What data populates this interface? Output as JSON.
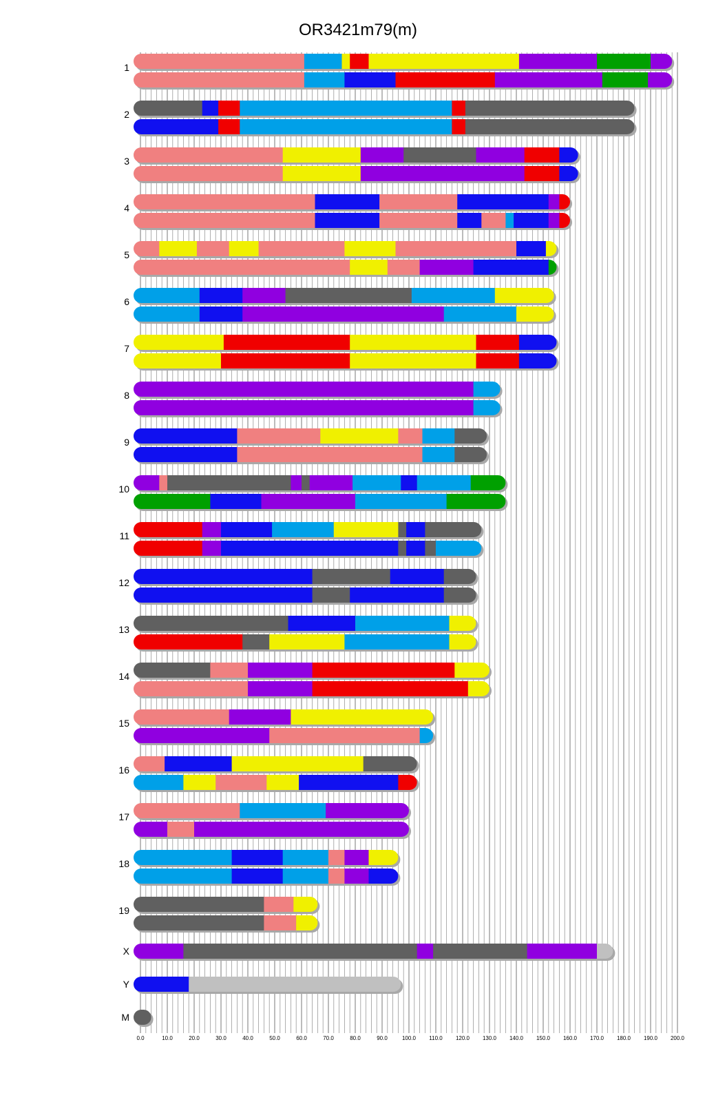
{
  "chart_data": {
    "type": "chromosome_painting",
    "title": "OR3421m79(m)",
    "xlabel": "",
    "ylabel": "",
    "xlim": [
      0,
      200
    ],
    "x_ticks": [
      "0.0",
      "10.0",
      "20.0",
      "30.0",
      "40.0",
      "50.0",
      "60.0",
      "70.0",
      "80.0",
      "90.0",
      "100.0",
      "110.0",
      "120.0",
      "130.0",
      "140.0",
      "150.0",
      "160.0",
      "170.0",
      "180.0",
      "190.0",
      "200.0"
    ],
    "grid": "vertical lines every 2 units",
    "colors": {
      "salmon": "#f08080",
      "skyblue": "#00a0e8",
      "yellow": "#f0f000",
      "red": "#f00000",
      "purple": "#9000e0",
      "green": "#00a000",
      "blue": "#1010f0",
      "darkgray": "#606060",
      "lightgray": "#c0c0c0"
    },
    "chromosomes": [
      {
        "label": "1",
        "length": 198,
        "haplotypes": [
          [
            [
              0,
              "salmon"
            ],
            [
              61,
              "skyblue"
            ],
            [
              75,
              "yellow"
            ],
            [
              78,
              "red"
            ],
            [
              85,
              "yellow"
            ],
            [
              141,
              "purple"
            ],
            [
              170,
              "green"
            ],
            [
              190,
              "purple"
            ]
          ],
          [
            [
              0,
              "salmon"
            ],
            [
              61,
              "skyblue"
            ],
            [
              76,
              "blue"
            ],
            [
              95,
              "red"
            ],
            [
              132,
              "purple"
            ],
            [
              172,
              "green"
            ],
            [
              189,
              "purple"
            ]
          ]
        ]
      },
      {
        "label": "2",
        "length": 184,
        "haplotypes": [
          [
            [
              0,
              "darkgray"
            ],
            [
              23,
              "blue"
            ],
            [
              29,
              "red"
            ],
            [
              37,
              "skyblue"
            ],
            [
              116,
              "red"
            ],
            [
              121,
              "darkgray"
            ]
          ],
          [
            [
              0,
              "blue"
            ],
            [
              29,
              "red"
            ],
            [
              37,
              "skyblue"
            ],
            [
              116,
              "red"
            ],
            [
              121,
              "darkgray"
            ]
          ]
        ]
      },
      {
        "label": "3",
        "length": 163,
        "haplotypes": [
          [
            [
              0,
              "salmon"
            ],
            [
              53,
              "yellow"
            ],
            [
              82,
              "purple"
            ],
            [
              98,
              "darkgray"
            ],
            [
              125,
              "purple"
            ],
            [
              143,
              "red"
            ],
            [
              156,
              "blue"
            ]
          ],
          [
            [
              0,
              "salmon"
            ],
            [
              53,
              "yellow"
            ],
            [
              82,
              "purple"
            ],
            [
              143,
              "red"
            ],
            [
              156,
              "blue"
            ]
          ]
        ]
      },
      {
        "label": "4",
        "length": 160,
        "haplotypes": [
          [
            [
              0,
              "salmon"
            ],
            [
              65,
              "blue"
            ],
            [
              89,
              "salmon"
            ],
            [
              118,
              "blue"
            ],
            [
              152,
              "purple"
            ],
            [
              156,
              "red"
            ]
          ],
          [
            [
              0,
              "salmon"
            ],
            [
              65,
              "blue"
            ],
            [
              89,
              "salmon"
            ],
            [
              118,
              "blue"
            ],
            [
              127,
              "salmon"
            ],
            [
              136,
              "skyblue"
            ],
            [
              139,
              "blue"
            ],
            [
              152,
              "purple"
            ],
            [
              156,
              "red"
            ]
          ]
        ]
      },
      {
        "label": "5",
        "length": 155,
        "haplotypes": [
          [
            [
              0,
              "salmon"
            ],
            [
              7,
              "yellow"
            ],
            [
              21,
              "salmon"
            ],
            [
              33,
              "yellow"
            ],
            [
              44,
              "salmon"
            ],
            [
              76,
              "yellow"
            ],
            [
              95,
              "salmon"
            ],
            [
              140,
              "blue"
            ],
            [
              151,
              "yellow"
            ]
          ],
          [
            [
              0,
              "salmon"
            ],
            [
              78,
              "yellow"
            ],
            [
              92,
              "salmon"
            ],
            [
              104,
              "purple"
            ],
            [
              124,
              "blue"
            ],
            [
              152,
              "green"
            ]
          ]
        ]
      },
      {
        "label": "6",
        "length": 154,
        "haplotypes": [
          [
            [
              0,
              "skyblue"
            ],
            [
              22,
              "blue"
            ],
            [
              38,
              "purple"
            ],
            [
              54,
              "darkgray"
            ],
            [
              101,
              "skyblue"
            ],
            [
              132,
              "yellow"
            ]
          ],
          [
            [
              0,
              "skyblue"
            ],
            [
              22,
              "blue"
            ],
            [
              38,
              "purple"
            ],
            [
              113,
              "skyblue"
            ],
            [
              140,
              "yellow"
            ]
          ]
        ]
      },
      {
        "label": "7",
        "length": 155,
        "haplotypes": [
          [
            [
              0,
              "yellow"
            ],
            [
              31,
              "red"
            ],
            [
              78,
              "yellow"
            ],
            [
              125,
              "red"
            ],
            [
              141,
              "blue"
            ]
          ],
          [
            [
              0,
              "yellow"
            ],
            [
              30,
              "red"
            ],
            [
              78,
              "yellow"
            ],
            [
              125,
              "red"
            ],
            [
              141,
              "blue"
            ]
          ]
        ]
      },
      {
        "label": "8",
        "length": 134,
        "haplotypes": [
          [
            [
              0,
              "purple"
            ],
            [
              124,
              "skyblue"
            ]
          ],
          [
            [
              0,
              "purple"
            ],
            [
              124,
              "skyblue"
            ]
          ]
        ]
      },
      {
        "label": "9",
        "length": 129,
        "haplotypes": [
          [
            [
              0,
              "blue"
            ],
            [
              36,
              "salmon"
            ],
            [
              67,
              "yellow"
            ],
            [
              96,
              "salmon"
            ],
            [
              105,
              "skyblue"
            ],
            [
              117,
              "darkgray"
            ]
          ],
          [
            [
              0,
              "blue"
            ],
            [
              36,
              "salmon"
            ],
            [
              105,
              "skyblue"
            ],
            [
              117,
              "darkgray"
            ]
          ]
        ]
      },
      {
        "label": "10",
        "length": 136,
        "haplotypes": [
          [
            [
              0,
              "purple"
            ],
            [
              7,
              "salmon"
            ],
            [
              10,
              "darkgray"
            ],
            [
              56,
              "purple"
            ],
            [
              60,
              "darkgray"
            ],
            [
              63,
              "purple"
            ],
            [
              79,
              "skyblue"
            ],
            [
              97,
              "blue"
            ],
            [
              103,
              "skyblue"
            ],
            [
              123,
              "green"
            ]
          ],
          [
            [
              0,
              "green"
            ],
            [
              26,
              "blue"
            ],
            [
              45,
              "purple"
            ],
            [
              80,
              "skyblue"
            ],
            [
              114,
              "green"
            ]
          ]
        ]
      },
      {
        "label": "11",
        "length": 127,
        "haplotypes": [
          [
            [
              0,
              "red"
            ],
            [
              23,
              "purple"
            ],
            [
              30,
              "blue"
            ],
            [
              49,
              "skyblue"
            ],
            [
              72,
              "yellow"
            ],
            [
              96,
              "darkgray"
            ],
            [
              99,
              "blue"
            ],
            [
              106,
              "darkgray"
            ]
          ],
          [
            [
              0,
              "red"
            ],
            [
              23,
              "purple"
            ],
            [
              30,
              "blue"
            ],
            [
              96,
              "darkgray"
            ],
            [
              99,
              "blue"
            ],
            [
              106,
              "darkgray"
            ],
            [
              110,
              "skyblue"
            ]
          ]
        ]
      },
      {
        "label": "12",
        "length": 125,
        "haplotypes": [
          [
            [
              0,
              "blue"
            ],
            [
              64,
              "darkgray"
            ],
            [
              93,
              "blue"
            ],
            [
              113,
              "darkgray"
            ]
          ],
          [
            [
              0,
              "blue"
            ],
            [
              64,
              "darkgray"
            ],
            [
              78,
              "blue"
            ],
            [
              113,
              "darkgray"
            ]
          ]
        ]
      },
      {
        "label": "13",
        "length": 125,
        "haplotypes": [
          [
            [
              0,
              "darkgray"
            ],
            [
              55,
              "blue"
            ],
            [
              80,
              "skyblue"
            ],
            [
              115,
              "yellow"
            ]
          ],
          [
            [
              0,
              "red"
            ],
            [
              38,
              "darkgray"
            ],
            [
              48,
              "yellow"
            ],
            [
              76,
              "skyblue"
            ],
            [
              115,
              "yellow"
            ]
          ]
        ]
      },
      {
        "label": "14",
        "length": 130,
        "haplotypes": [
          [
            [
              0,
              "darkgray"
            ],
            [
              26,
              "salmon"
            ],
            [
              40,
              "purple"
            ],
            [
              64,
              "red"
            ],
            [
              117,
              "yellow"
            ]
          ],
          [
            [
              0,
              "salmon"
            ],
            [
              40,
              "purple"
            ],
            [
              64,
              "red"
            ],
            [
              122,
              "yellow"
            ]
          ]
        ]
      },
      {
        "label": "15",
        "length": 109,
        "haplotypes": [
          [
            [
              0,
              "salmon"
            ],
            [
              33,
              "purple"
            ],
            [
              56,
              "yellow"
            ]
          ],
          [
            [
              0,
              "purple"
            ],
            [
              48,
              "salmon"
            ],
            [
              104,
              "skyblue"
            ]
          ]
        ]
      },
      {
        "label": "16",
        "length": 103,
        "haplotypes": [
          [
            [
              0,
              "salmon"
            ],
            [
              9,
              "blue"
            ],
            [
              34,
              "yellow"
            ],
            [
              83,
              "darkgray"
            ]
          ],
          [
            [
              0,
              "skyblue"
            ],
            [
              16,
              "yellow"
            ],
            [
              28,
              "salmon"
            ],
            [
              47,
              "yellow"
            ],
            [
              59,
              "blue"
            ],
            [
              96,
              "red"
            ]
          ]
        ]
      },
      {
        "label": "17",
        "length": 100,
        "haplotypes": [
          [
            [
              0,
              "salmon"
            ],
            [
              37,
              "skyblue"
            ],
            [
              69,
              "purple"
            ]
          ],
          [
            [
              0,
              "purple"
            ],
            [
              10,
              "salmon"
            ],
            [
              20,
              "purple"
            ]
          ]
        ]
      },
      {
        "label": "18",
        "length": 96,
        "haplotypes": [
          [
            [
              0,
              "skyblue"
            ],
            [
              34,
              "blue"
            ],
            [
              53,
              "skyblue"
            ],
            [
              70,
              "salmon"
            ],
            [
              76,
              "purple"
            ],
            [
              85,
              "yellow"
            ]
          ],
          [
            [
              0,
              "skyblue"
            ],
            [
              34,
              "blue"
            ],
            [
              53,
              "skyblue"
            ],
            [
              70,
              "salmon"
            ],
            [
              76,
              "purple"
            ],
            [
              85,
              "blue"
            ]
          ]
        ]
      },
      {
        "label": "19",
        "length": 66,
        "haplotypes": [
          [
            [
              0,
              "darkgray"
            ],
            [
              46,
              "salmon"
            ],
            [
              57,
              "yellow"
            ]
          ],
          [
            [
              0,
              "darkgray"
            ],
            [
              46,
              "salmon"
            ],
            [
              58,
              "yellow"
            ]
          ]
        ]
      },
      {
        "label": "X",
        "length": 176,
        "haplotypes": [
          [
            [
              0,
              "purple"
            ],
            [
              16,
              "darkgray"
            ],
            [
              103,
              "purple"
            ],
            [
              109,
              "darkgray"
            ],
            [
              144,
              "purple"
            ],
            [
              170,
              "lightgray"
            ]
          ]
        ]
      },
      {
        "label": "Y",
        "length": 97,
        "haplotypes": [
          [
            [
              0,
              "blue"
            ],
            [
              18,
              "lightgray"
            ]
          ]
        ]
      },
      {
        "label": "M",
        "length": 4,
        "haplotypes": [
          [
            [
              0,
              "darkgray"
            ]
          ]
        ]
      }
    ]
  }
}
